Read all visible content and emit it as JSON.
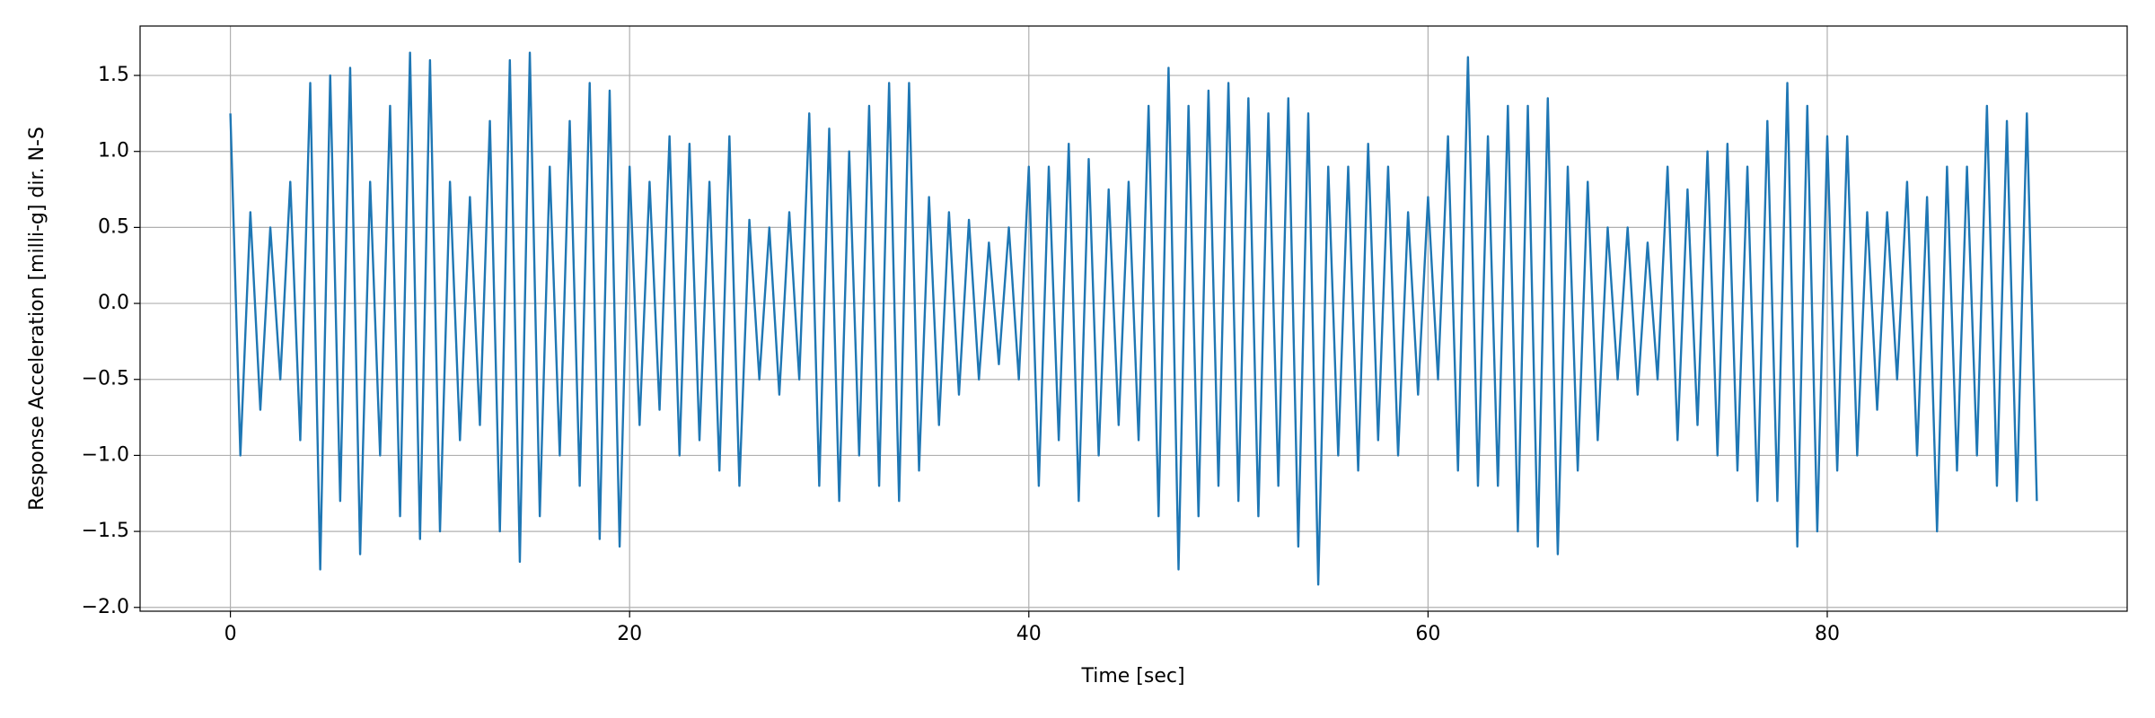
{
  "chart_data": {
    "type": "line",
    "xlabel": "Time [sec]",
    "ylabel": "Response Acceleration [milli-g] dir. N-S",
    "color": "#1f77b4",
    "grid": true,
    "xlim": [
      -4.525,
      95.025
    ],
    "ylim": [
      -2.025,
      1.825
    ],
    "xticks": [
      0,
      20,
      40,
      60,
      80
    ],
    "yticks": [
      {
        "value": -2.0,
        "label": "−2.0"
      },
      {
        "value": -1.5,
        "label": "−1.5"
      },
      {
        "value": -1.0,
        "label": "−1.0"
      },
      {
        "value": -0.5,
        "label": "−0.5"
      },
      {
        "value": 0,
        "label": "0.0"
      },
      0.5,
      {
        "value": 1,
        "label": "1.0"
      },
      1.5
    ],
    "x": [
      0,
      0.5,
      1,
      1.5,
      2,
      2.5,
      3,
      3.5,
      4,
      4.5,
      5,
      5.5,
      6,
      6.5,
      7,
      7.5,
      8,
      8.5,
      9,
      9.5,
      10,
      10.5,
      11,
      11.5,
      12,
      12.5,
      13,
      13.5,
      14,
      14.5,
      15,
      15.5,
      16,
      16.5,
      17,
      17.5,
      18,
      18.5,
      19,
      19.5,
      20,
      20.5,
      21,
      21.5,
      22,
      22.5,
      23,
      23.5,
      24,
      24.5,
      25,
      25.5,
      26,
      26.5,
      27,
      27.5,
      28,
      28.5,
      29,
      29.5,
      30,
      30.5,
      31,
      31.5,
      32,
      32.5,
      33,
      33.5,
      34,
      34.5,
      35,
      35.5,
      36,
      36.5,
      37,
      37.5,
      38,
      38.5,
      39,
      39.5,
      40,
      40.5,
      41,
      41.5,
      42,
      42.5,
      43,
      43.5,
      44,
      44.5,
      45,
      45.5,
      46,
      46.5,
      47,
      47.5,
      48,
      48.5,
      49,
      49.5,
      50,
      50.5,
      51,
      51.5,
      52,
      52.5,
      53,
      53.5,
      54,
      54.5,
      55,
      55.5,
      56,
      56.5,
      57,
      57.5,
      58,
      58.5,
      59,
      59.5,
      60,
      60.5,
      61,
      61.5,
      62,
      62.5,
      63,
      63.5,
      64,
      64.5,
      65,
      65.5,
      66,
      66.5,
      67,
      67.5,
      68,
      68.5,
      69,
      69.5,
      70,
      70.5,
      71,
      71.5,
      72,
      72.5,
      73,
      73.5,
      74,
      74.5,
      75,
      75.5,
      76,
      76.5,
      77,
      77.5,
      78,
      78.5,
      79,
      79.5,
      80,
      80.5,
      81,
      81.5,
      82,
      82.5,
      83,
      83.5,
      84,
      84.5,
      85,
      85.5,
      86,
      86.5,
      87,
      87.5,
      88,
      88.5,
      89,
      89.5,
      90,
      90.5
    ],
    "values": [
      1.25,
      -1.0,
      0.6,
      -0.7,
      0.5,
      -0.5,
      0.8,
      -0.9,
      1.45,
      -1.75,
      1.5,
      -1.3,
      1.55,
      -1.65,
      0.8,
      -1.0,
      1.3,
      -1.4,
      1.65,
      -1.55,
      1.6,
      -1.5,
      0.8,
      -0.9,
      0.7,
      -0.8,
      1.2,
      -1.5,
      1.6,
      -1.7,
      1.65,
      -1.4,
      0.9,
      -1.0,
      1.2,
      -1.2,
      1.45,
      -1.55,
      1.4,
      -1.6,
      0.9,
      -0.8,
      0.8,
      -0.7,
      1.1,
      -1.0,
      1.05,
      -0.9,
      0.8,
      -1.1,
      1.1,
      -1.2,
      0.55,
      -0.5,
      0.5,
      -0.6,
      0.6,
      -0.5,
      1.25,
      -1.2,
      1.15,
      -1.3,
      1.0,
      -1.0,
      1.3,
      -1.2,
      1.45,
      -1.3,
      1.45,
      -1.1,
      0.7,
      -0.8,
      0.6,
      -0.6,
      0.55,
      -0.5,
      0.4,
      -0.4,
      0.5,
      -0.5,
      0.9,
      -1.2,
      0.9,
      -0.9,
      1.05,
      -1.3,
      0.95,
      -1.0,
      0.75,
      -0.8,
      0.8,
      -0.9,
      1.3,
      -1.4,
      1.55,
      -1.75,
      1.3,
      -1.4,
      1.4,
      -1.2,
      1.45,
      -1.3,
      1.35,
      -1.4,
      1.25,
      -1.2,
      1.35,
      -1.6,
      1.25,
      -1.85,
      0.9,
      -1.0,
      0.9,
      -1.1,
      1.05,
      -0.9,
      0.9,
      -1.0,
      0.6,
      -0.6,
      0.7,
      -0.5,
      1.1,
      -1.1,
      1.62,
      -1.2,
      1.1,
      -1.2,
      1.3,
      -1.5,
      1.3,
      -1.6,
      1.35,
      -1.65,
      0.9,
      -1.1,
      0.8,
      -0.9,
      0.5,
      -0.5,
      0.5,
      -0.6,
      0.4,
      -0.5,
      0.9,
      -0.9,
      0.75,
      -0.8,
      1.0,
      -1.0,
      1.05,
      -1.1,
      0.9,
      -1.3,
      1.2,
      -1.3,
      1.45,
      -1.6,
      1.3,
      -1.5,
      1.1,
      -1.1,
      1.1,
      -1.0,
      0.6,
      -0.7,
      0.6,
      -0.5,
      0.8,
      -1.0,
      0.7,
      -1.5,
      0.9,
      -1.1,
      0.9,
      -1.0,
      1.3,
      -1.2,
      1.2,
      -1.3,
      1.25,
      -1.3
    ]
  }
}
